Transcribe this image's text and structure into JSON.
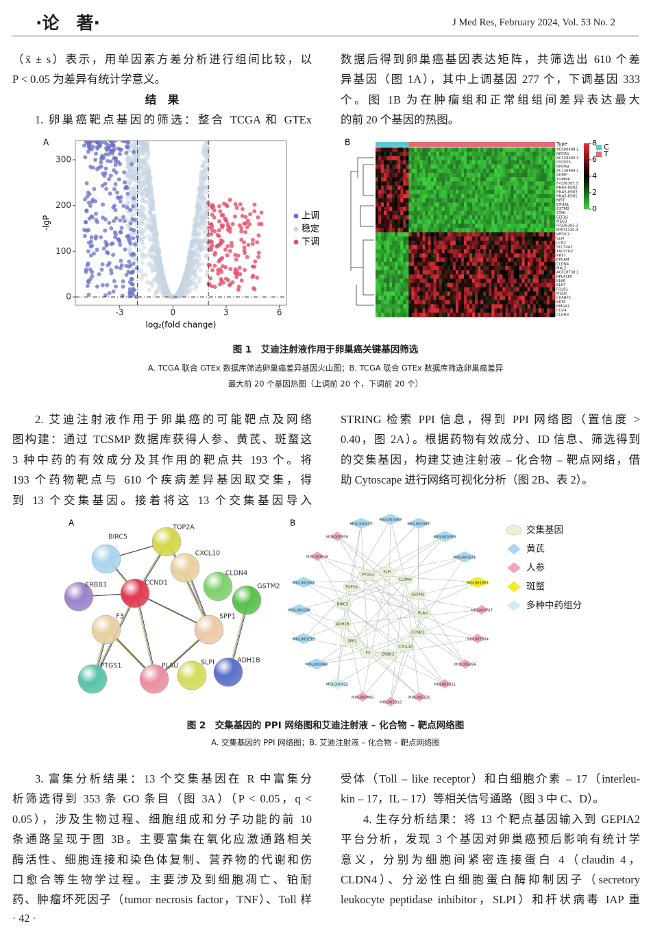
{
  "header": {
    "section": "·论　著·",
    "journal": "J Med Res, February 2024, Vol. 53 No. 2"
  },
  "body": {
    "top_left": [
      "（x̄ ± s）表示，用单因素方差分析进行组间比较，以",
      "P < 0.05 为差异有统计学意义。",
      "结　果",
      "1. 卵巢癌靶点基因的筛选：整合 TCGA 和 GTEx"
    ],
    "top_right": [
      "数据后得到卵巢癌基因表达矩阵，共筛选出 610 个差",
      "异基因（图 1A），其中上调基因 277 个，下调基因 333",
      "个。图 1B 为在肿瘤组和正常组组间差异表达最大",
      "的前 20 个基因的热图。"
    ],
    "mid_left": [
      "2. 艾迪注射液作用于卵巢癌的可能靶点及网络",
      "图构建：通过 TCSMP 数据库获得人参、黄芪、斑蝥这",
      "3 种中药的有效成分及其作用的靶点共 193 个。将",
      "193 个药物靶点与 610 个疾病差异基因取交集，得",
      "到 13 个交集基因。接着将这 13 个交集基因导入"
    ],
    "mid_right": [
      "STRING 检索 PPI 信息，得到 PPI 网络图（置信度 >",
      "0.40，图 2A）。根据药物有效成分、ID 信息、筛选得到",
      "的交集基因，构建艾迪注射液 – 化合物 – 靶点网络，借",
      "助 Cytoscape 进行网络可视化分析（图 2B、表 2）。"
    ],
    "bottom_left": [
      "3. 富集分析结果：13 个交集基因在 R 中富集分",
      "析筛选得到 353 条 GO 条目（图 3A）（P < 0.05，q <",
      "0.05），涉及生物过程、细胞组成和分子功能的前 10",
      "条通路呈现于图 3B。主要富集在氧化应激通路相关",
      "酶活性、细胞连接和染色体复制、营养物的代谢和伤",
      "口愈合等生物学过程。主要涉及到细胞凋亡、铂耐",
      "药、肿瘤坏死因子（tumor necrosis factor，TNF）、Toll 样"
    ],
    "bottom_right": [
      "受体（Toll – like receptor）和白细胞介素 – 17（interleu-",
      "kin – 17，IL – 17）等相关信号通路（图 3 中 C、D）。",
      "4. 生存分析结果：将 13 个靶点基因输入到 GEPIA2",
      "平台分析，发现 3 个基因对卵巢癌预后影响有统计学",
      "意义，分别为细胞间紧密连接蛋白 4（claudin 4，",
      "CLDN4）、分泌性白细胞蛋白酶抑制因子（secretory",
      "leukocyte peptidase inhibitor，SLPI）和杆状病毒 IAP 重"
    ]
  },
  "figure1": {
    "panel_a": {
      "label": "A",
      "ylabel": "-lgP",
      "xlabel": "log₂(fold change)",
      "xlim": [
        -5.5,
        6.4
      ],
      "ylim": [
        -18,
        342
      ],
      "xticks": [
        -3,
        0,
        3,
        6
      ],
      "yticks": [
        0,
        100,
        200,
        300
      ],
      "legend": [
        "上调",
        "稳定",
        "下调"
      ]
    },
    "panel_b": {
      "label": "B",
      "type_label": "Type",
      "groups": [
        "C",
        "T"
      ],
      "scale_ticks": [
        8,
        6,
        4,
        2,
        0
      ],
      "genes": [
        "AC090498.1",
        "NPIPA1",
        "AC129492.1",
        "DIO3OS",
        "NPIPA9",
        "AC138969.1",
        "ADIRF",
        "TOMM6",
        "FP236383.3",
        "RNA5-8SN2",
        "RNA5-8SN3",
        "RNA5-8SN1",
        "NPIT",
        "EIF4A1",
        "GSTM2",
        "STAR",
        "EEF1G",
        "MEG3",
        "FP236383.2",
        "FP671120.4",
        "WFDC2",
        "SLPI",
        "LCN2",
        "SLC34A2",
        "TACSTD2",
        "KRT7",
        "EPCAM",
        "CLDN4",
        "MAL2",
        "AC018738.1",
        "RPL41P5",
        "KLK6",
        "KLK7",
        "FOLR1",
        "MSLN",
        "CRABP2",
        "KRT8",
        "HMGA1",
        "CD24",
        "CLDN3"
      ]
    },
    "caption": "图 1　艾迪注射液作用于卵巢癌关键基因筛选",
    "notes": [
      "A. TCGA 联合 GTEx 数据库筛选卵巢癌差异基因火山图；B. TCGA 联合 GTEx 数据库筛选卵巢癌差异",
      "最大前 20 个基因热图（上调前 20 个，下调前 20 个）"
    ]
  },
  "figure2": {
    "panel_a": {
      "label": "A",
      "nodes": [
        "BIRC5",
        "TOP2A",
        "CXCL10",
        "CLDN4",
        "GSTM2",
        "ERBB3",
        "CCND1",
        "F3",
        "SPP1",
        "PTGS1",
        "PLAU",
        "SLPI",
        "ADH1B"
      ]
    },
    "panel_b": {
      "label": "B",
      "legend": [
        {
          "label": "交集基因",
          "nodes": [
            "PTGS1",
            "SLPI",
            "CLDN4",
            "TOP2A",
            "GSTM2",
            "BIRC5",
            "PLAU",
            "ADH1B",
            "CCND1",
            "SPP1",
            "CXCL10",
            "F3",
            "ERBB3"
          ]
        },
        {
          "label": "黄芪",
          "nodes": [
            "MOL000417",
            "MOL000392",
            "MOL000387",
            "MOL000380",
            "MOL000371",
            "MOL000354",
            "MOL000296",
            "MOL000239",
            "MOL000098"
          ]
        },
        {
          "label": "人参",
          "nodes": [
            "MOL000358",
            "MOL003648",
            "MOL000787",
            "MOL005384",
            "MOL005356",
            "MOL005321",
            "MOL000449",
            "MOL005318",
            "MOL005320"
          ]
        },
        {
          "label": "斑蝥",
          "nodes": [
            "MOL001851"
          ]
        },
        {
          "label": "多种中药组分",
          "nodes": [
            "MOL000422"
          ]
        }
      ]
    },
    "caption": "图 2　交集基因的 PPI 网络图和艾迪注射液 – 化合物 – 靶点网络图",
    "notes": [
      "A. 交集基因的 PPI 网络图；B. 艾迪注射液 – 化合物 – 靶点网络图"
    ]
  },
  "page_number": "· 42 ·"
}
